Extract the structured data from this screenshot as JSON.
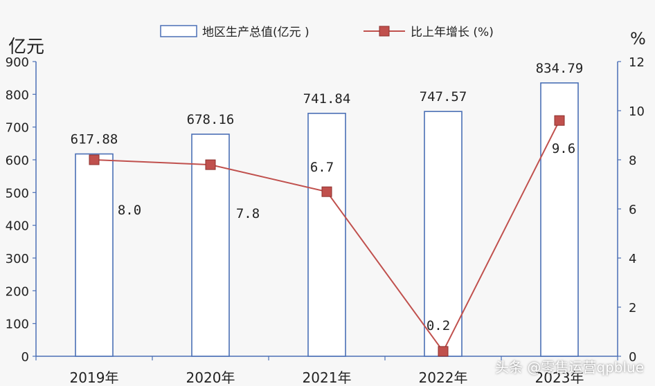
{
  "chart_data": {
    "type": "bar+line",
    "categories": [
      "2019年",
      "2020年",
      "2021年",
      "2022年",
      "2023年"
    ],
    "series": [
      {
        "name": "地区生产总值(亿元  )",
        "type": "bar",
        "axis": "left",
        "values": [
          617.88,
          678.16,
          741.84,
          747.57,
          834.79
        ],
        "labels": [
          "617.88",
          "678.16",
          "741.84",
          "747.57",
          "834.79"
        ],
        "color": "#4a6fb5"
      },
      {
        "name": "比上年增长 (%)",
        "type": "line",
        "axis": "right",
        "values": [
          8.0,
          7.8,
          6.7,
          0.2,
          9.6
        ],
        "labels": [
          "8.0",
          "7.8",
          "6.7",
          "0.2",
          "9.6"
        ],
        "color": "#c0504d"
      }
    ],
    "y_left": {
      "unit": "亿元",
      "range": [
        0,
        900
      ],
      "ticks": [
        0,
        100,
        200,
        300,
        400,
        500,
        600,
        700,
        800,
        900
      ]
    },
    "y_right": {
      "unit": "%",
      "range": [
        0,
        12
      ],
      "ticks": [
        0,
        2,
        4,
        6,
        8,
        10,
        12
      ]
    },
    "legend": "top-center",
    "grid": false
  },
  "watermark": "头条 @零售运营qpblue",
  "colors": {
    "axis": "#4a6fb5",
    "bar_stroke": "#4a6fb5",
    "line": "#c0504d",
    "marker": "#c0504d",
    "text": "#222222"
  }
}
